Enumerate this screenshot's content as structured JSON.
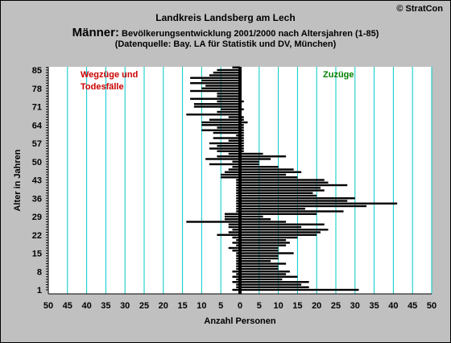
{
  "header": {
    "title": "Landkreis Landsberg am Lech",
    "copyright": "© StratCon",
    "subtitle_big": "Männer:",
    "subtitle_rest": " Bevölkerungsentwicklung 2001/2000 nach Altersjahren (1-85)",
    "source": "(Datenquelle: Bay. LA für Statistik und DV, München)"
  },
  "colors": {
    "background": "#c0c0c0",
    "plot": "#ffffff",
    "grid": "#00c8c8",
    "bars": "#000000",
    "legend_left": "#cc0000",
    "legend_right": "#008000"
  },
  "chart_data": {
    "type": "bar",
    "orientation": "horizontal",
    "xlabel": "Anzahl Personen",
    "ylabel": "Alter in Jahren",
    "x_ticks": [
      "50",
      "45",
      "40",
      "35",
      "30",
      "25",
      "20",
      "15",
      "10",
      "5",
      "0",
      "5",
      "10",
      "15",
      "20",
      "25",
      "30",
      "35",
      "40",
      "45",
      "50"
    ],
    "y_ticks": [
      "1",
      "8",
      "15",
      "22",
      "29",
      "36",
      "43",
      "50",
      "57",
      "64",
      "71",
      "78",
      "85"
    ],
    "xlim": [
      -50,
      50
    ],
    "ylim": [
      1,
      86
    ],
    "grid": true,
    "legend_left": [
      "Wegzüge und",
      "Todesfälle"
    ],
    "legend_right": "Zuzüge",
    "series": [
      {
        "name": "Zuzüge",
        "ages": [
          1,
          2,
          3,
          4,
          5,
          6,
          7,
          8,
          9,
          10,
          11,
          12,
          13,
          14,
          15,
          16,
          17,
          18,
          19,
          20,
          21,
          22,
          23,
          24,
          25,
          26,
          27,
          28,
          29,
          30,
          31,
          32,
          33,
          34,
          35,
          36,
          37,
          38,
          39,
          40,
          41,
          42,
          43,
          44,
          45,
          46,
          47,
          48,
          49,
          50,
          51,
          52,
          53,
          54,
          55,
          56,
          57,
          58,
          59,
          60,
          61,
          62,
          63,
          64,
          65,
          66,
          67,
          68,
          69,
          70,
          71,
          72,
          73,
          74,
          75,
          76,
          77,
          78,
          79,
          80,
          81,
          82,
          83,
          84,
          85,
          86
        ],
        "values": [
          31,
          18,
          16,
          18,
          11,
          15,
          12,
          13,
          10,
          10,
          12,
          8,
          10,
          10,
          14,
          10,
          10,
          12,
          13,
          12,
          15,
          20,
          21,
          23,
          16,
          22,
          12,
          8,
          6,
          20,
          27,
          17,
          33,
          41,
          28,
          30,
          20,
          19,
          22,
          21,
          28,
          23,
          22,
          15,
          12,
          16,
          14,
          10,
          5,
          5,
          8,
          12,
          6,
          1,
          1,
          1,
          1,
          1,
          1,
          1,
          1,
          1,
          1,
          1,
          2,
          1,
          1,
          0,
          0,
          1,
          0,
          0,
          1,
          0,
          0,
          0,
          0,
          0,
          0,
          0,
          0,
          0,
          0,
          0,
          0,
          0
        ]
      },
      {
        "name": "Wegzüge und Todesfälle",
        "ages": [
          1,
          2,
          3,
          4,
          5,
          6,
          7,
          8,
          9,
          10,
          11,
          12,
          13,
          14,
          15,
          16,
          17,
          18,
          19,
          20,
          21,
          22,
          23,
          24,
          25,
          26,
          27,
          28,
          29,
          30,
          31,
          32,
          33,
          34,
          35,
          36,
          37,
          38,
          39,
          40,
          41,
          42,
          43,
          44,
          45,
          46,
          47,
          48,
          49,
          50,
          51,
          52,
          53,
          54,
          55,
          56,
          57,
          58,
          59,
          60,
          61,
          62,
          63,
          64,
          65,
          66,
          67,
          68,
          69,
          70,
          71,
          72,
          73,
          74,
          75,
          76,
          77,
          78,
          79,
          80,
          81,
          82,
          83,
          84,
          85,
          86
        ],
        "values": [
          -2,
          -1,
          -1,
          -2,
          -1,
          -2,
          -1,
          -2,
          -1,
          -1,
          -1,
          -1,
          -1,
          -1,
          -1,
          -2,
          -3,
          -1,
          -2,
          -1,
          -2,
          -6,
          -3,
          -2,
          -3,
          -3,
          -14,
          -4,
          -4,
          -4,
          -1,
          -1,
          -1,
          -1,
          -1,
          -1,
          -1,
          -1,
          -1,
          -1,
          -1,
          -1,
          -1,
          -5,
          -5,
          -4,
          -3,
          -2,
          -8,
          -2,
          -9,
          -6,
          -3,
          -6,
          -8,
          -6,
          -8,
          -3,
          -7,
          -1,
          -7,
          -10,
          -6,
          -10,
          -10,
          -8,
          -3,
          -14,
          -6,
          -5,
          -12,
          -12,
          -6,
          -13,
          -6,
          -6,
          -13,
          -10,
          -9,
          -13,
          -10,
          -13,
          -8,
          -7,
          -6,
          -2
        ]
      }
    ]
  }
}
